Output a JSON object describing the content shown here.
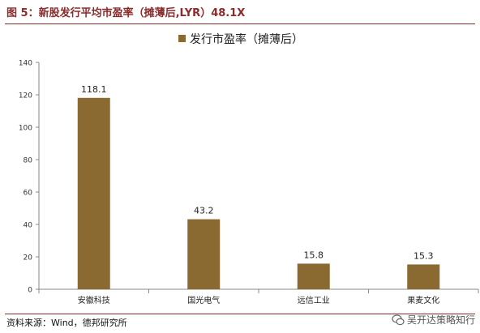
{
  "header": {
    "title": "图 5：新股发行平均市盈率（摊薄后,LYR）48.1X"
  },
  "footer": {
    "source": "资料来源：Wind，德邦研究所",
    "watermark_text": "吴开达策略知行",
    "watermark_icon": "wechat-icon"
  },
  "colors": {
    "bar": "#8B6A32",
    "title": "#8B2A2A",
    "axis": "#888888"
  },
  "chart_data": {
    "type": "bar",
    "title": "",
    "legend": {
      "position": "top-center"
    },
    "categories": [
      "安徽科技",
      "国光电气",
      "远信工业",
      "果麦文化"
    ],
    "series": [
      {
        "name": "发行市盈率（摊薄后）",
        "values": [
          118.1,
          43.2,
          15.8,
          15.3
        ]
      }
    ],
    "data_labels": [
      "118.1",
      "43.2",
      "15.8",
      "15.3"
    ],
    "ylim": [
      0,
      140
    ],
    "yticks": [
      0,
      20,
      40,
      60,
      80,
      100,
      120,
      140
    ],
    "grid": false,
    "xlabel": "",
    "ylabel": ""
  }
}
